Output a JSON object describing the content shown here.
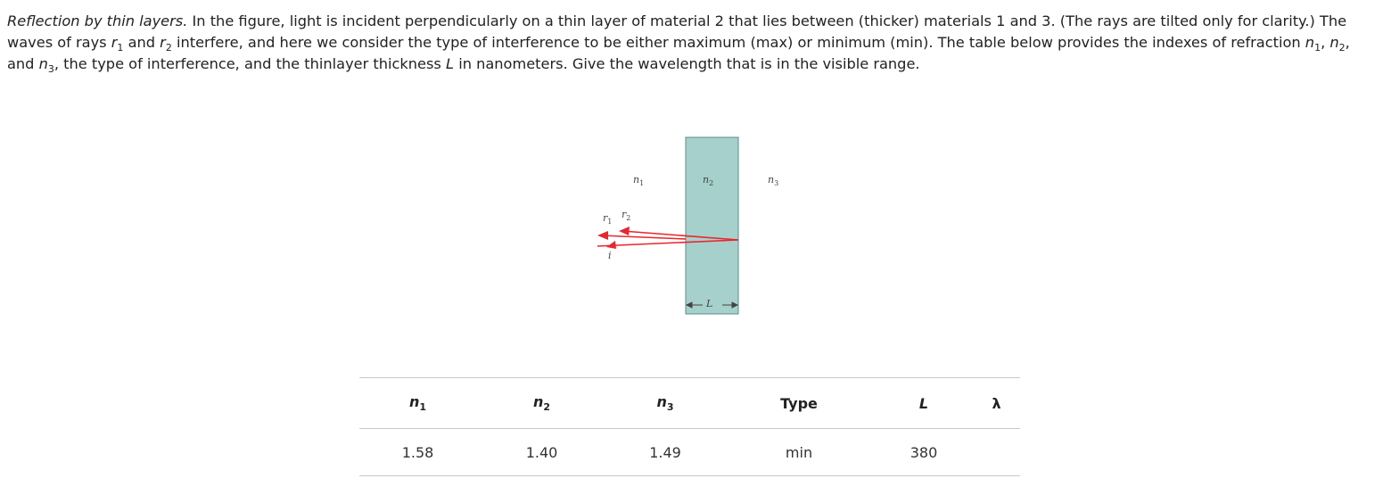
{
  "problem": {
    "title": "Reflection by thin layers.",
    "p1": " In the figure, light is incident perpendicularly on a thin layer of material 2 that lies between (thicker) materials 1 and 3. (The rays are tilted only for clarity.) The waves of rays ",
    "r": "r",
    "s1": "1",
    "and1": " and ",
    "s2": "2",
    "p2": " interfere, and here we consider the type of interference to be either maximum (max) or minimum (min). The table below provides the indexes of refraction ",
    "n": "n",
    "comma1": ", ",
    "comma2": ", and ",
    "s3": "3",
    "p3": ", the type of interference, and the thinlayer thickness ",
    "L": "L",
    "p4": " in nanometers. Give the wavelength that is in the visible range."
  },
  "figure": {
    "n1": "n",
    "n1_sub": "1",
    "n2": "n",
    "n2_sub": "2",
    "n3": "n",
    "n3_sub": "3",
    "r1": "r",
    "r1_sub": "1",
    "r2": "r",
    "r2_sub": "2",
    "i": "i",
    "L": "L",
    "layer_color": "#a6d0cb",
    "ray_color": "#e8262b"
  },
  "table": {
    "headers": [
      {
        "sym": "n",
        "sub": "1"
      },
      {
        "sym": "n",
        "sub": "2"
      },
      {
        "sym": "n",
        "sub": "3"
      },
      {
        "text": "Type"
      },
      {
        "text": "L"
      },
      {
        "text": "λ"
      }
    ],
    "row": [
      "1.58",
      "1.40",
      "1.49",
      "min",
      "380",
      ""
    ]
  }
}
